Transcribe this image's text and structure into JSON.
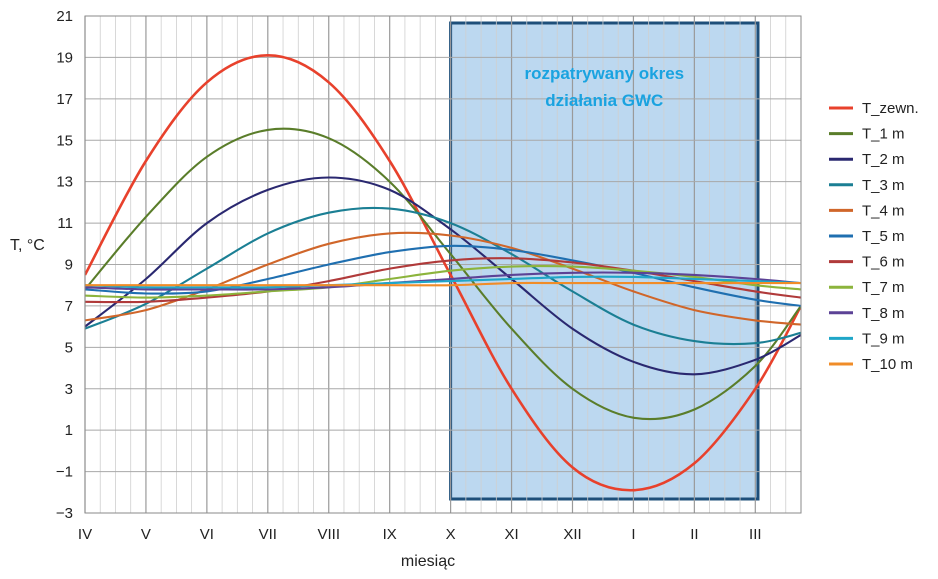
{
  "chart_data": {
    "type": "line",
    "xlabel": "miesiąc",
    "ylabel": "T, °C",
    "ylim": [
      -3,
      21
    ],
    "yticks": [
      21,
      19,
      17,
      15,
      13,
      11,
      9,
      7,
      5,
      3,
      1,
      -1,
      -3
    ],
    "ytick_labels": [
      "21",
      "19",
      "17",
      "15",
      "13",
      "11",
      "9",
      "7",
      "5",
      "3",
      "1",
      "−1",
      "−3"
    ],
    "xlim": [
      0,
      11.75
    ],
    "x_month_labels": [
      "IV",
      "V",
      "VI",
      "VII",
      "VIII",
      "IX",
      "X",
      "XI",
      "XII",
      "I",
      "II",
      "III"
    ],
    "grid": true,
    "legend_position": "right",
    "annotation": {
      "lines": [
        "rozpatrywany okres",
        "działania GWC"
      ],
      "x_range": [
        6,
        11.75
      ]
    },
    "series": [
      {
        "name": "T_zewn.",
        "color": "#e8412c",
        "x": [
          0,
          1,
          2,
          3,
          4,
          5,
          6,
          7,
          8,
          9,
          10,
          11,
          11.75
        ],
        "y": [
          8.5,
          14.0,
          17.8,
          19.1,
          17.8,
          14.0,
          8.5,
          3.0,
          -0.8,
          -1.9,
          -0.6,
          3.0,
          7.0
        ]
      },
      {
        "name": "T_1 m",
        "color": "#5a7d2a",
        "x": [
          0,
          1,
          2,
          3,
          4,
          5,
          6,
          7,
          8,
          9,
          10,
          11,
          11.75
        ],
        "y": [
          7.8,
          11.3,
          14.2,
          15.5,
          15.1,
          13.0,
          9.5,
          5.9,
          3.0,
          1.6,
          2.0,
          4.1,
          7.0
        ]
      },
      {
        "name": "T_2 m",
        "color": "#2a2870",
        "x": [
          0,
          1,
          2,
          3,
          4,
          5,
          6,
          7,
          8,
          9,
          10,
          11,
          11.75
        ],
        "y": [
          6.0,
          8.3,
          11.0,
          12.6,
          13.2,
          12.6,
          10.7,
          8.3,
          5.9,
          4.3,
          3.7,
          4.4,
          5.6
        ]
      },
      {
        "name": "T_3 m",
        "color": "#1b7f94",
        "x": [
          0,
          1,
          2,
          3,
          4,
          5,
          6,
          7,
          8,
          9,
          10,
          11,
          11.75
        ],
        "y": [
          5.9,
          7.1,
          8.8,
          10.5,
          11.5,
          11.7,
          11.0,
          9.5,
          7.7,
          6.1,
          5.3,
          5.2,
          5.7
        ]
      },
      {
        "name": "T_4 m",
        "color": "#d0662a",
        "x": [
          0,
          1,
          2,
          3,
          4,
          5,
          6,
          7,
          8,
          9,
          10,
          11,
          11.75
        ],
        "y": [
          6.3,
          6.8,
          7.8,
          9.0,
          10.0,
          10.5,
          10.4,
          9.8,
          8.8,
          7.7,
          6.8,
          6.3,
          6.1
        ]
      },
      {
        "name": "T_5 m",
        "color": "#1f6fb0",
        "x": [
          0,
          1,
          2,
          3,
          4,
          5,
          6,
          7,
          8,
          9,
          10,
          11,
          11.75
        ],
        "y": [
          7.8,
          7.6,
          7.7,
          8.3,
          9.0,
          9.6,
          9.9,
          9.7,
          9.2,
          8.6,
          7.9,
          7.3,
          7.0
        ]
      },
      {
        "name": "T_6 m",
        "color": "#b03a3a",
        "x": [
          0,
          1,
          2,
          3,
          4,
          5,
          6,
          7,
          8,
          9,
          10,
          11,
          11.75
        ],
        "y": [
          7.2,
          7.2,
          7.4,
          7.7,
          8.2,
          8.8,
          9.2,
          9.3,
          9.1,
          8.7,
          8.2,
          7.7,
          7.4
        ]
      },
      {
        "name": "T_7 m",
        "color": "#8cb43c",
        "x": [
          0,
          1,
          2,
          3,
          4,
          5,
          6,
          7,
          8,
          9,
          10,
          11,
          11.75
        ],
        "y": [
          7.5,
          7.4,
          7.5,
          7.7,
          7.9,
          8.3,
          8.7,
          8.9,
          8.9,
          8.7,
          8.4,
          8.0,
          7.8
        ]
      },
      {
        "name": "T_8 m",
        "color": "#5c4296",
        "x": [
          0,
          1,
          2,
          3,
          4,
          5,
          6,
          7,
          8,
          9,
          10,
          11,
          11.75
        ],
        "y": [
          7.9,
          7.8,
          7.8,
          7.8,
          7.9,
          8.1,
          8.3,
          8.5,
          8.6,
          8.6,
          8.5,
          8.3,
          8.1
        ]
      },
      {
        "name": "T_9 m",
        "color": "#1fa6c8",
        "x": [
          0,
          1,
          2,
          3,
          4,
          5,
          6,
          7,
          8,
          9,
          10,
          11,
          11.75
        ],
        "y": [
          8.0,
          7.9,
          7.9,
          7.9,
          8.0,
          8.1,
          8.2,
          8.3,
          8.4,
          8.4,
          8.3,
          8.2,
          8.1
        ]
      },
      {
        "name": "T_10 m",
        "color": "#f08c28",
        "x": [
          0,
          1,
          2,
          3,
          4,
          5,
          6,
          7,
          8,
          9,
          10,
          11,
          11.75
        ],
        "y": [
          8.0,
          8.0,
          8.0,
          8.0,
          8.0,
          8.0,
          8.0,
          8.1,
          8.1,
          8.1,
          8.1,
          8.1,
          8.1
        ]
      }
    ]
  }
}
